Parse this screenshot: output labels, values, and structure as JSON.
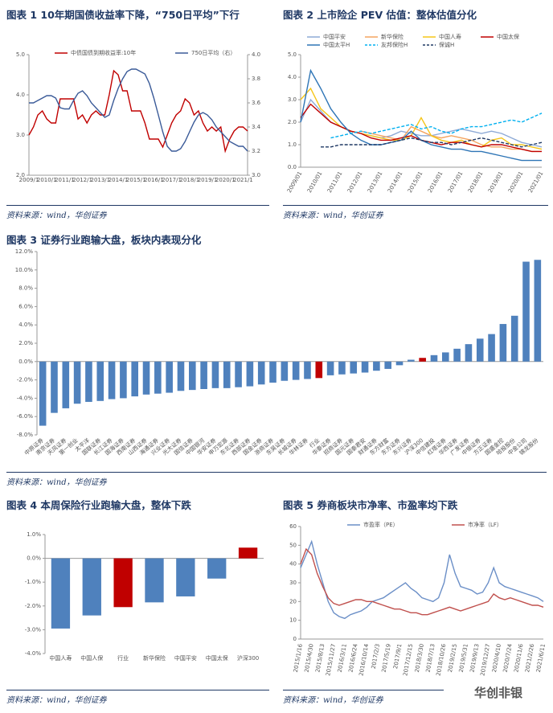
{
  "chart_data": [
    {
      "type": "line",
      "title": "图表 1   10年期国债收益率下降，“750日平均”下行",
      "note": "资料来源：wind，华创证券",
      "categories": [
        "2009/1",
        null,
        null,
        null,
        "2010/1",
        null,
        null,
        null,
        "2011/1",
        null,
        null,
        null,
        "2012/1",
        null,
        null,
        null,
        "2013/1",
        null,
        null,
        null,
        "2014/1",
        null,
        null,
        null,
        "2015/1",
        null,
        null,
        null,
        "2016/1",
        null,
        null,
        null,
        "2017/1",
        null,
        null,
        null,
        "2018/1",
        null,
        null,
        null,
        "2019/1",
        null,
        null,
        null,
        "2020/1",
        null,
        null,
        null,
        "2021/1",
        null
      ],
      "series": [
        {
          "name": "中债国债到期收益率:10年",
          "color": "#c00000",
          "values": [
            3.0,
            3.2,
            3.5,
            3.6,
            3.4,
            3.3,
            3.3,
            3.9,
            3.9,
            3.9,
            3.9,
            3.4,
            3.5,
            3.3,
            3.5,
            3.6,
            3.5,
            3.5,
            4.0,
            4.6,
            4.5,
            4.1,
            4.1,
            3.6,
            3.6,
            3.6,
            3.3,
            2.9,
            2.9,
            2.9,
            2.7,
            3.0,
            3.3,
            3.5,
            3.6,
            3.9,
            3.8,
            3.5,
            3.6,
            3.3,
            3.1,
            3.2,
            3.1,
            3.2,
            2.6,
            2.9,
            3.1,
            3.2,
            3.2,
            3.1
          ]
        },
        {
          "name": "750日平均（右）",
          "color": "#3a5a98",
          "axis": "y2",
          "values": [
            3.6,
            3.6,
            3.62,
            3.64,
            3.66,
            3.66,
            3.64,
            3.56,
            3.55,
            3.55,
            3.62,
            3.68,
            3.7,
            3.66,
            3.6,
            3.56,
            3.52,
            3.48,
            3.5,
            3.62,
            3.72,
            3.8,
            3.86,
            3.88,
            3.88,
            3.86,
            3.84,
            3.76,
            3.64,
            3.5,
            3.36,
            3.24,
            3.2,
            3.2,
            3.22,
            3.28,
            3.36,
            3.44,
            3.5,
            3.52,
            3.5,
            3.46,
            3.4,
            3.36,
            3.32,
            3.28,
            3.26,
            3.24,
            3.24,
            3.2
          ]
        }
      ],
      "ylim": [
        2,
        5
      ],
      "yticks": [
        {
          "value": 2,
          "label": "2.0"
        },
        {
          "value": 3,
          "label": "3.0"
        },
        {
          "value": 4,
          "label": "4.0"
        },
        {
          "value": 5,
          "label": "5.0"
        }
      ],
      "y2lim": [
        3,
        4
      ],
      "y2ticks": [
        {
          "value": 3,
          "label": "3.0"
        },
        3.2,
        3.4,
        3.6,
        3.8,
        {
          "value": 4,
          "label": "4.0"
        }
      ]
    },
    {
      "type": "line",
      "title": "图表 2   上市险企 PEV 估值：整体估值分化",
      "note": "资料来源：wind，华创证券",
      "categories": [
        "2009/01",
        null,
        "2010/01",
        null,
        "2011/01",
        null,
        "2012/01",
        null,
        "2013/01",
        null,
        "2014/01",
        null,
        "2015/01",
        null,
        "2016/01",
        null,
        "2017/01",
        null,
        "2018/01",
        null,
        "2019/01",
        null,
        "2020/01",
        null,
        "2021/01"
      ],
      "series": [
        {
          "name": "中国平安",
          "color": "#8eaad6",
          "values": [
            2.0,
            3.0,
            2.5,
            2.0,
            1.8,
            1.6,
            1.5,
            1.4,
            1.3,
            1.4,
            1.6,
            1.5,
            1.4,
            1.4,
            1.5,
            1.6,
            1.7,
            1.6,
            1.5,
            1.6,
            1.5,
            1.3,
            1.1,
            1.0,
            0.9
          ]
        },
        {
          "name": "新华保险",
          "color": "#f4a460",
          "values": [
            null,
            null,
            null,
            null,
            null,
            null,
            1.6,
            1.5,
            1.4,
            1.3,
            1.2,
            1.8,
            1.6,
            1.4,
            1.3,
            1.4,
            1.3,
            1.2,
            1.0,
            0.9,
            0.9,
            0.8,
            0.8,
            0.7,
            0.7
          ]
        },
        {
          "name": "中国人寿",
          "color": "#f5c518",
          "values": [
            3.0,
            3.5,
            2.6,
            2.2,
            1.8,
            1.6,
            1.5,
            1.4,
            1.3,
            1.2,
            1.2,
            1.4,
            2.2,
            1.4,
            1.2,
            1.1,
            1.2,
            1.0,
            0.9,
            1.2,
            1.3,
            1.0,
            1.0,
            0.9,
            0.8
          ]
        },
        {
          "name": "中国太保",
          "color": "#c00000",
          "values": [
            2.2,
            2.8,
            2.4,
            2.0,
            1.8,
            1.6,
            1.5,
            1.3,
            1.2,
            1.2,
            1.3,
            1.4,
            1.2,
            1.1,
            1.0,
            1.1,
            1.1,
            1.0,
            0.9,
            1.0,
            1.0,
            0.9,
            0.8,
            0.7,
            0.7
          ]
        },
        {
          "name": "中国太平H",
          "color": "#2e75b6",
          "values": [
            2.0,
            4.3,
            3.5,
            2.6,
            2.0,
            1.5,
            1.2,
            1.0,
            1.0,
            1.1,
            1.2,
            1.6,
            1.2,
            1.0,
            0.9,
            0.8,
            0.8,
            0.7,
            0.7,
            0.6,
            0.5,
            0.4,
            0.3,
            0.3,
            0.3
          ]
        },
        {
          "name": "友邦保险H",
          "color": "#00b0f0",
          "dash": true,
          "values": [
            null,
            null,
            null,
            1.3,
            1.4,
            1.5,
            1.6,
            1.5,
            1.6,
            1.7,
            1.8,
            1.9,
            1.7,
            1.8,
            1.6,
            1.5,
            1.7,
            1.8,
            1.8,
            1.9,
            2.0,
            2.1,
            2.0,
            2.2,
            2.4
          ]
        },
        {
          "name": "保诚H",
          "color": "#1f3864",
          "dash": true,
          "values": [
            null,
            null,
            0.9,
            0.9,
            1.0,
            1.0,
            1.0,
            1.0,
            1.0,
            1.1,
            1.2,
            1.3,
            1.2,
            1.1,
            1.1,
            1.0,
            1.1,
            1.2,
            1.3,
            1.2,
            1.1,
            1.0,
            0.9,
            1.0,
            1.1
          ]
        }
      ],
      "ylim": [
        0,
        5
      ],
      "yticks": [
        {
          "value": 0,
          "label": "0.0"
        },
        {
          "value": 1,
          "label": "1.0"
        },
        {
          "value": 2,
          "label": "2.0"
        },
        {
          "value": 3,
          "label": "3.0"
        },
        {
          "value": 4,
          "label": "4.0"
        },
        {
          "value": 5,
          "label": "5.0"
        }
      ]
    },
    {
      "type": "bar",
      "title": "图表 3   证券行业跑输大盘，板块内表现分化",
      "note": "资料来源：wind，华创证券",
      "categories": [
        "中原证券",
        "南京证券",
        "天风证券",
        "第一创业",
        "太平洋",
        "国联证券",
        "长江证券",
        "国海证券",
        "西南证券",
        "山西证券",
        "海通证券",
        "兴业证券",
        "光大证券",
        "国信证券",
        "中国银河",
        "华安证券",
        "申万宏源",
        "东北证券",
        "西部证券",
        "国金证券",
        "浙商证券",
        "东吴证券",
        "长城证券",
        "华林证券",
        "行业",
        "华泰证券",
        "招商证券",
        "国元证券",
        "国泰君安",
        "财通证券",
        "东方财富",
        "东方证券",
        "东兴证券",
        "沪深300",
        "中信建投",
        "红塔证券",
        "华西证券",
        "广发证券",
        "中银证券",
        "方正证券",
        "国盛金控",
        "哈投股份",
        "中金公司",
        "锦龙股份"
      ],
      "values": [
        -7.0,
        -5.6,
        -5.1,
        -4.6,
        -4.4,
        -4.3,
        -4.1,
        -4.0,
        -3.8,
        -3.6,
        -3.5,
        -3.4,
        -3.2,
        -3.1,
        -3.0,
        -2.9,
        -2.9,
        -2.8,
        -2.7,
        -2.5,
        -2.3,
        -2.1,
        -2.0,
        -1.9,
        -1.8,
        -1.5,
        -1.4,
        -1.3,
        -1.2,
        -1.0,
        -0.8,
        -0.4,
        0.2,
        0.4,
        0.7,
        1.0,
        1.4,
        1.9,
        2.5,
        3.0,
        4.1,
        5.0,
        10.9,
        11.1
      ],
      "color": "#4f81bd",
      "colors": {
        "24": "#c00000",
        "33": "#c00000"
      },
      "ylim": [
        -8,
        12
      ],
      "yticks": [
        {
          "value": -8,
          "label": "-8.0%"
        },
        {
          "value": -6,
          "label": "-6.0%"
        },
        {
          "value": -4,
          "label": "-4.0%"
        },
        {
          "value": -2,
          "label": "-2.0%"
        },
        {
          "value": 0,
          "label": "0.0%"
        },
        {
          "value": 2,
          "label": "2.0%"
        },
        {
          "value": 4,
          "label": "4.0%"
        },
        {
          "value": 6,
          "label": "6.0%"
        },
        {
          "value": 8,
          "label": "8.0%"
        },
        {
          "value": 10,
          "label": "10.0%"
        },
        {
          "value": 12,
          "label": "12.0%"
        }
      ]
    },
    {
      "type": "bar",
      "title": "图表 4   本周保险行业跑输大盘，整体下跌",
      "note": "资料来源：wind，华创证券",
      "categories": [
        "中国人寿",
        "中国人保",
        "行业",
        "新华保险",
        "中国平安",
        "中国太保",
        "沪深300"
      ],
      "values": [
        -2.95,
        -2.4,
        -2.05,
        -1.85,
        -1.6,
        -0.85,
        0.45
      ],
      "color": "#4f81bd",
      "colors": {
        "2": "#c00000",
        "6": "#c00000"
      },
      "ylim": [
        -4,
        1
      ],
      "yticks": [
        {
          "value": -4,
          "label": "-4.0%"
        },
        {
          "value": -3,
          "label": "-3.0%"
        },
        {
          "value": -2,
          "label": "-2.0%"
        },
        {
          "value": -1,
          "label": "-1.0%"
        },
        {
          "value": 0,
          "label": "0.0%"
        },
        {
          "value": 1,
          "label": "1.0%"
        }
      ]
    },
    {
      "type": "line",
      "title": "图表 5   券商板块市净率、市盈率均下跌",
      "note": "资料来源：wind，华创证券",
      "categories": [
        "2015/1/16",
        null,
        "2015/4/30",
        null,
        "2015/8/13",
        null,
        "2015/11/27",
        null,
        "2016/3/11",
        null,
        "2016/6/24",
        null,
        "2016/10/14",
        null,
        "2017/2/3",
        null,
        "2017/5/19",
        null,
        "2017/9/1",
        null,
        "2017/12/15",
        null,
        "2018/3/30",
        null,
        "2018/7/13",
        null,
        "2018/10/26",
        null,
        "2019/2/15",
        null,
        "2019/5/31",
        null,
        "2019/9/13",
        null,
        "2019/12/27",
        null,
        "2020/4/10",
        null,
        "2020/7/24",
        null,
        "2020/11/6",
        null,
        "2021/2/26",
        null,
        "2021/6/11"
      ],
      "series": [
        {
          "name": "市盈率（PE）",
          "color": "#6b8fc7",
          "values": [
            38,
            45,
            52,
            40,
            30,
            20,
            14,
            12,
            11,
            13,
            14,
            15,
            17,
            20,
            21,
            22,
            24,
            26,
            28,
            30,
            27,
            25,
            22,
            21,
            20,
            22,
            30,
            45,
            35,
            28,
            27,
            26,
            24,
            25,
            30,
            38,
            30,
            28,
            27,
            26,
            25,
            24,
            23,
            22,
            20
          ]
        },
        {
          "name": "市净率（LF）",
          "color": "#c0504d",
          "values": [
            40,
            48,
            45,
            35,
            28,
            22,
            19,
            18,
            19,
            20,
            21,
            21,
            20,
            20,
            19,
            18,
            17,
            16,
            16,
            15,
            14,
            14,
            13,
            13,
            14,
            15,
            16,
            17,
            16,
            15,
            16,
            17,
            18,
            19,
            20,
            24,
            22,
            21,
            22,
            21,
            20,
            19,
            18,
            18,
            17
          ]
        }
      ],
      "ylim": [
        0,
        60
      ],
      "yticks": [
        0,
        10,
        20,
        30,
        40,
        50,
        60
      ]
    }
  ],
  "branding": {
    "watermark": "华创非银"
  }
}
